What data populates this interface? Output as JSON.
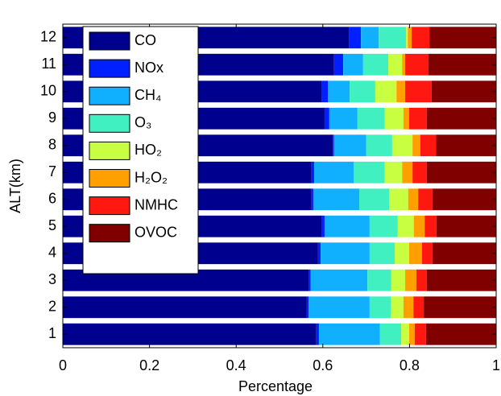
{
  "chart_data": {
    "type": "stacked-barh",
    "xlabel": "Percentage",
    "ylabel": "ALT(km)",
    "categories": [
      "1",
      "2",
      "3",
      "4",
      "5",
      "6",
      "7",
      "8",
      "9",
      "10",
      "11",
      "12"
    ],
    "xlim": [
      0,
      1
    ],
    "xticks": [
      0,
      0.2,
      0.4,
      0.6,
      0.8,
      1
    ],
    "legend": "upper left",
    "series": [
      {
        "name": "CO",
        "color": "#00008f",
        "values": [
          0.585,
          0.563,
          0.567,
          0.589,
          0.598,
          0.574,
          0.574,
          0.623,
          0.604,
          0.598,
          0.626,
          0.66
        ]
      },
      {
        "name": "NOx",
        "color": "#0020ff",
        "values": [
          0.006,
          0.004,
          0.005,
          0.006,
          0.006,
          0.004,
          0.006,
          0.003,
          0.011,
          0.014,
          0.021,
          0.028
        ]
      },
      {
        "name": "CH₄",
        "color": "#10b0ff",
        "values": [
          0.141,
          0.141,
          0.131,
          0.113,
          0.104,
          0.106,
          0.091,
          0.074,
          0.065,
          0.05,
          0.046,
          0.041
        ]
      },
      {
        "name": "O₃",
        "color": "#40f0c0",
        "values": [
          0.049,
          0.049,
          0.055,
          0.058,
          0.065,
          0.069,
          0.072,
          0.06,
          0.063,
          0.059,
          0.058,
          0.063
        ]
      },
      {
        "name": "HO₂",
        "color": "#c8ff40",
        "values": [
          0.018,
          0.029,
          0.032,
          0.033,
          0.037,
          0.044,
          0.04,
          0.047,
          0.043,
          0.049,
          0.032,
          0.004
        ]
      },
      {
        "name": "H₂O₂",
        "color": "#ffa000",
        "values": [
          0.013,
          0.023,
          0.026,
          0.03,
          0.025,
          0.023,
          0.024,
          0.018,
          0.013,
          0.02,
          0.007,
          0.009
        ]
      },
      {
        "name": "NMHC",
        "color": "#ff1810",
        "values": [
          0.026,
          0.024,
          0.024,
          0.024,
          0.027,
          0.033,
          0.033,
          0.036,
          0.041,
          0.061,
          0.054,
          0.041
        ]
      },
      {
        "name": "OVOC",
        "color": "#800000",
        "values": [
          0.162,
          0.167,
          0.16,
          0.147,
          0.138,
          0.147,
          0.16,
          0.139,
          0.16,
          0.149,
          0.156,
          0.154
        ]
      }
    ]
  }
}
